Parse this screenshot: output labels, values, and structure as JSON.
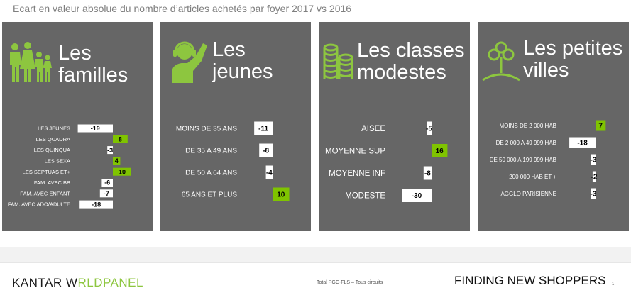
{
  "subtitle": "Ecart en valeur absolue du nombre d’articles achetés par foyer 2017 vs 2016",
  "colors": {
    "panel": "#666666",
    "positive": "#7fc400",
    "negative": "#ffffff",
    "accent": "#8dc63f"
  },
  "chart_data": [
    {
      "type": "bar",
      "title": "Les familles",
      "icon": "family-icon",
      "categories": [
        "LES JEUNES",
        "LES QUADRA",
        "LES QUINQUA",
        "LES SEXA",
        "LES SEPTUAS ET+",
        "FAM. AVEC BB",
        "FAM. AVEC ENFANT",
        "FAM. AVEC ADO/ADULTE"
      ],
      "values": [
        -19,
        8,
        -3,
        4,
        10,
        -6,
        -7,
        -18
      ],
      "value_labels": [
        "-19",
        "8",
        "-3",
        "4",
        "10",
        "-6",
        "-7",
        "-18"
      ]
    },
    {
      "type": "bar",
      "title": "Les jeunes",
      "icon": "headset-person-icon",
      "categories": [
        "MOINS DE 35 ANS",
        "DE 35 A 49 ANS",
        "DE 50 A 64 ANS",
        "65 ANS ET PLUS"
      ],
      "values": [
        -11,
        -8,
        -4,
        10
      ],
      "value_labels": [
        "-11",
        "-8",
        "-4",
        "10"
      ]
    },
    {
      "type": "bar",
      "title": "Les classes modestes",
      "icon": "coin-stacks-icon",
      "categories": [
        "AISEE",
        "MOYENNE SUP",
        "MOYENNE INF",
        "MODESTE"
      ],
      "values": [
        -5,
        16,
        -8,
        -30
      ],
      "value_labels": [
        "-5",
        "16",
        "-8",
        "-30"
      ]
    },
    {
      "type": "bar",
      "title": "Les petites villes",
      "icon": "tree-icon",
      "categories": [
        "MOINS DE 2 000 HAB",
        "DE 2 000 A 49 999 HAB",
        "DE 50 000 A 199 999 HAB",
        "200 000 HAB ET +",
        "AGGLO PARISIENNE"
      ],
      "values": [
        7,
        -18,
        -3,
        -2,
        -3
      ],
      "value_labels": [
        "7",
        "-18",
        "-3",
        "-2",
        "-3"
      ]
    }
  ],
  "footer": {
    "logo_part1": "KANTAR W",
    "logo_part2": "RLDPANEL",
    "source": "Total PGC-FLS  – Tous circuits",
    "tagline": "FINDING NEW SHOPPERS",
    "page_mark": "1"
  }
}
